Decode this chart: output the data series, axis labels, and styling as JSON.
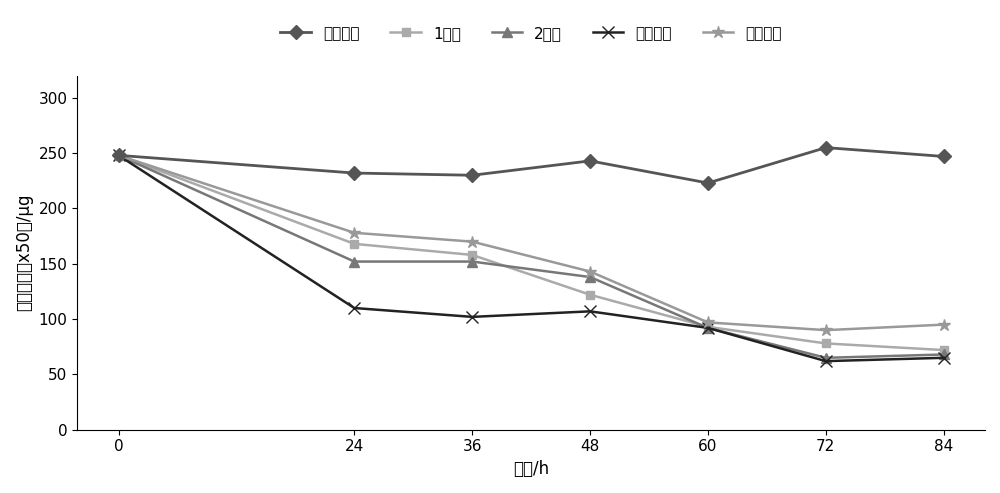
{
  "x": [
    0,
    24,
    36,
    48,
    60,
    72,
    84
  ],
  "series": [
    {
      "label": "空白对照",
      "values": [
        248,
        232,
        230,
        243,
        223,
        255,
        247
      ],
      "color": "#555555",
      "marker": "D",
      "linewidth": 2.0,
      "markersize": 7,
      "zorder": 5
    },
    {
      "label": "1号菌",
      "values": [
        248,
        168,
        158,
        122,
        93,
        78,
        72
      ],
      "color": "#aaaaaa",
      "marker": "s",
      "linewidth": 1.8,
      "markersize": 6,
      "zorder": 4
    },
    {
      "label": "2号菌",
      "values": [
        248,
        152,
        152,
        138,
        92,
        65,
        68
      ],
      "color": "#777777",
      "marker": "^",
      "linewidth": 1.8,
      "markersize": 7,
      "zorder": 4
    },
    {
      "label": "硝化细菌",
      "values": [
        248,
        110,
        102,
        107,
        92,
        62,
        65
      ],
      "color": "#222222",
      "marker": "x",
      "linewidth": 1.8,
      "markersize": 8,
      "zorder": 4
    },
    {
      "label": "大肠杆菌",
      "values": [
        248,
        178,
        170,
        143,
        97,
        90,
        95
      ],
      "color": "#999999",
      "marker": "*",
      "linewidth": 1.8,
      "markersize": 9,
      "zorder": 4
    }
  ],
  "xlabel": "时间/h",
  "ylabel": "氨氮含量（x50）/μg",
  "ylim": [
    0,
    320
  ],
  "yticks": [
    0,
    50,
    100,
    150,
    200,
    250,
    300
  ],
  "xticks": [
    0,
    24,
    36,
    48,
    60,
    72,
    84
  ],
  "legend_loc": "upper center",
  "legend_ncol": 5,
  "background_color": "#ffffff",
  "grid": false,
  "title_fontsize": 12,
  "axis_fontsize": 12,
  "tick_fontsize": 11,
  "legend_fontsize": 11
}
